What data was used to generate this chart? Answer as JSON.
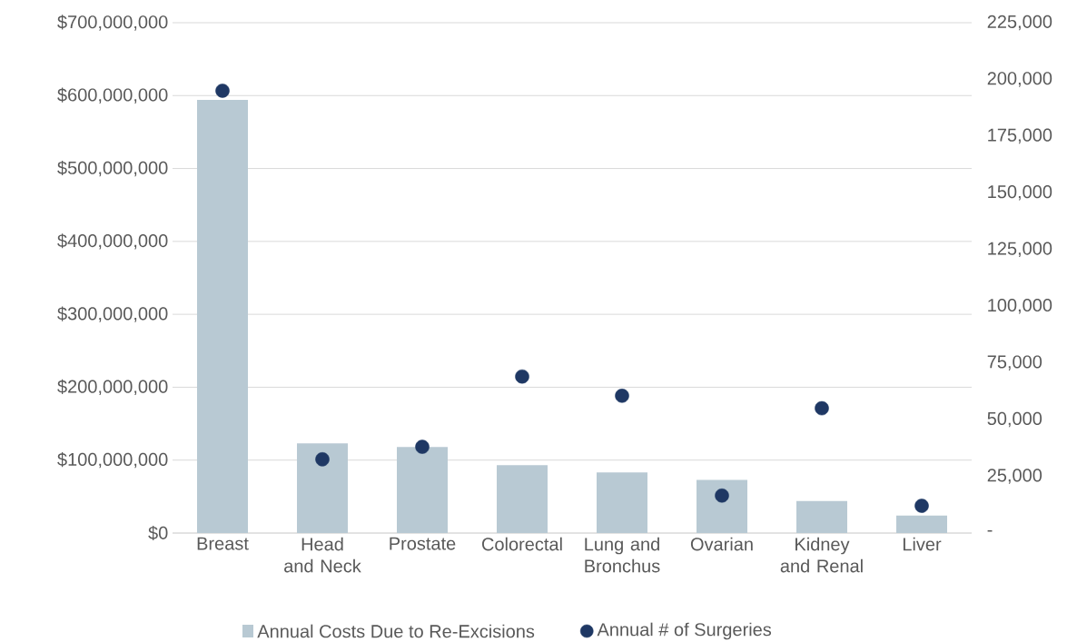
{
  "chart_data": {
    "type": "bar",
    "categories": [
      "Breast",
      "Head and Neck",
      "Prostate",
      "Colorectal",
      "Lung and Bronchus",
      "Ovarian",
      "Kidney and Renal",
      "Liver"
    ],
    "series": [
      {
        "name": "Annual Costs Due to Re-Excisions",
        "color": "#b8c9d3",
        "values": [
          594000000,
          123000000,
          118000000,
          93000000,
          83000000,
          73000000,
          44000000,
          24000000
        ]
      },
      {
        "name": "Annual # of Surgeries",
        "type": "scatter",
        "axis": "y2",
        "marker": "circle",
        "color": "#1f3864",
        "values": [
          195000,
          32500,
          38000,
          69000,
          60500,
          16500,
          55000,
          12000
        ]
      }
    ],
    "ylim": [
      0,
      700000000
    ],
    "yticks": [
      {
        "value": 0,
        "label": "$0"
      },
      {
        "value": 100000000,
        "label": "$100,000,000"
      },
      {
        "value": 200000000,
        "label": "$200,000,000"
      },
      {
        "value": 300000000,
        "label": "$300,000,000"
      },
      {
        "value": 400000000,
        "label": "$400,000,000"
      },
      {
        "value": 500000000,
        "label": "$500,000,000"
      },
      {
        "value": 600000000,
        "label": "$600,000,000"
      },
      {
        "value": 700000000,
        "label": "$700,000,000"
      }
    ],
    "y2lim": [
      0,
      225000
    ],
    "y2ticks": [
      {
        "value": 0,
        "label": "-"
      },
      {
        "value": 25000,
        "label": "25,000"
      },
      {
        "value": 50000,
        "label": "50,000"
      },
      {
        "value": 75000,
        "label": "75,000"
      },
      {
        "value": 100000,
        "label": "100,000"
      },
      {
        "value": 125000,
        "label": "125,000"
      },
      {
        "value": 150000,
        "label": "150,000"
      },
      {
        "value": 175000,
        "label": "175,000"
      },
      {
        "value": 200000,
        "label": "200,000"
      },
      {
        "value": 225000,
        "label": "225,000"
      }
    ],
    "grid": "y",
    "legend": "bottom"
  }
}
